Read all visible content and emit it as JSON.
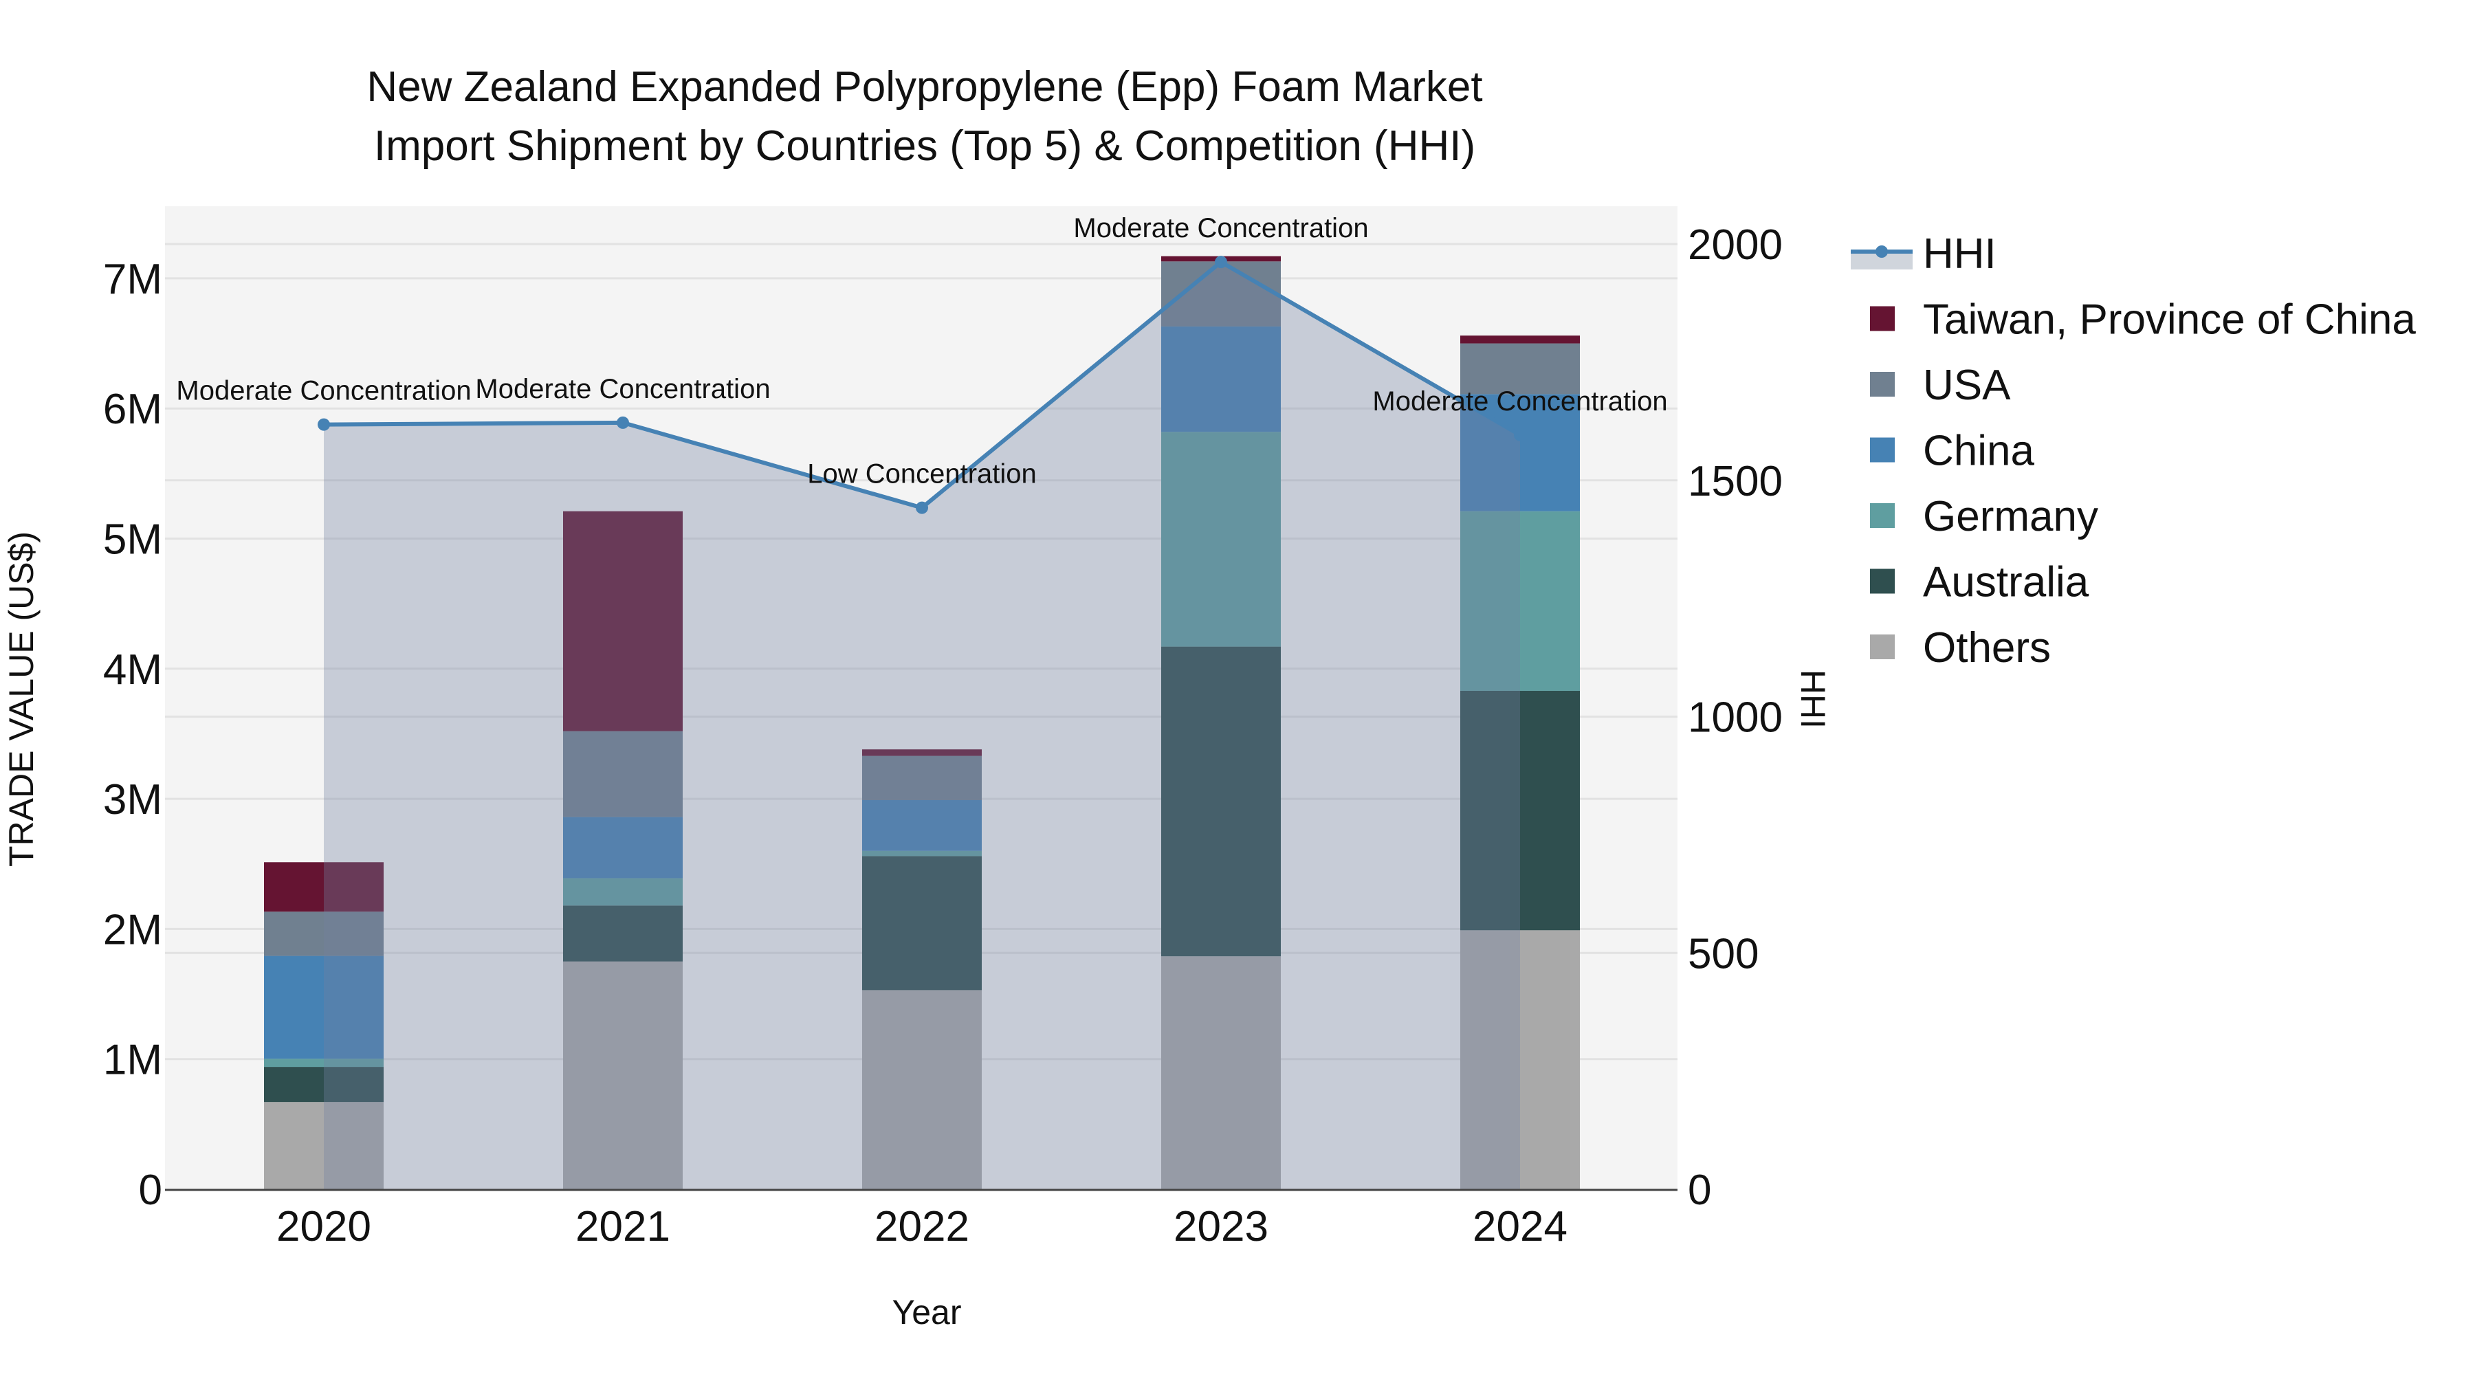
{
  "title": {
    "line1": "New Zealand Expanded Polypropylene (Epp) Foam Market",
    "line2": "Import Shipment by Countries (Top 5) & Competition (HHI)"
  },
  "axes": {
    "x_title": "Year",
    "y_left_title": "TRADE VALUE (US$)",
    "y_right_title": "HHI",
    "y_left_ticks": [
      "0",
      "1M",
      "2M",
      "3M",
      "4M",
      "5M",
      "6M",
      "7M"
    ],
    "y_right_ticks": [
      "0",
      "500",
      "1000",
      "1500",
      "2000"
    ]
  },
  "colors": {
    "plot_bg": "#f4f4f4",
    "grid": "#e2e2e2",
    "hhi_line": "#4682b4",
    "hhi_fill": "rgba(116,130,160,0.35)",
    "Taiwan, Province of China": "#651432",
    "USA": "#708090",
    "China": "#4682b4",
    "Germany": "#5f9ea0",
    "Australia": "#2f4f4f",
    "Others": "#a9a9a9"
  },
  "legend": [
    {
      "label": "HHI",
      "type": "line"
    },
    {
      "label": "Taiwan, Province of China",
      "type": "box"
    },
    {
      "label": "USA",
      "type": "box"
    },
    {
      "label": "China",
      "type": "box"
    },
    {
      "label": "Germany",
      "type": "box"
    },
    {
      "label": "Australia",
      "type": "box"
    },
    {
      "label": "Others",
      "type": "box"
    }
  ],
  "chart_data": {
    "type": "bar",
    "stacked": true,
    "title": "New Zealand Expanded Polypropylene (Epp) Foam Market Import Shipment by Countries (Top 5) & Competition (HHI)",
    "xlabel": "Year",
    "ylabel": "TRADE VALUE (US$)",
    "y2label": "HHI",
    "categories": [
      "2020",
      "2021",
      "2022",
      "2023",
      "2024"
    ],
    "ylim": [
      0,
      7550000
    ],
    "y2lim": [
      0,
      2080
    ],
    "grid": true,
    "legend_position": "right",
    "series": [
      {
        "name": "Others",
        "values": [
          670000,
          1750000,
          1530000,
          1790000,
          1990000
        ]
      },
      {
        "name": "Australia",
        "values": [
          270000,
          430000,
          1030000,
          2380000,
          1840000
        ]
      },
      {
        "name": "Germany",
        "values": [
          63000,
          210000,
          40000,
          1650000,
          1380000
        ]
      },
      {
        "name": "China",
        "values": [
          790000,
          470000,
          390000,
          810000,
          900000
        ]
      },
      {
        "name": "USA",
        "values": [
          340000,
          660000,
          340000,
          500000,
          390000
        ]
      },
      {
        "name": "Taiwan, Province of China",
        "values": [
          380000,
          1690000,
          50000,
          40000,
          60000
        ]
      }
    ],
    "line_series": {
      "name": "HHI",
      "axis": "right",
      "values": [
        1618,
        1622,
        1442,
        1962,
        1596
      ],
      "annotations": [
        "Moderate Concentration",
        "Moderate Concentration",
        "Low Concentration",
        "Moderate Concentration",
        "Moderate Concentration"
      ]
    }
  }
}
